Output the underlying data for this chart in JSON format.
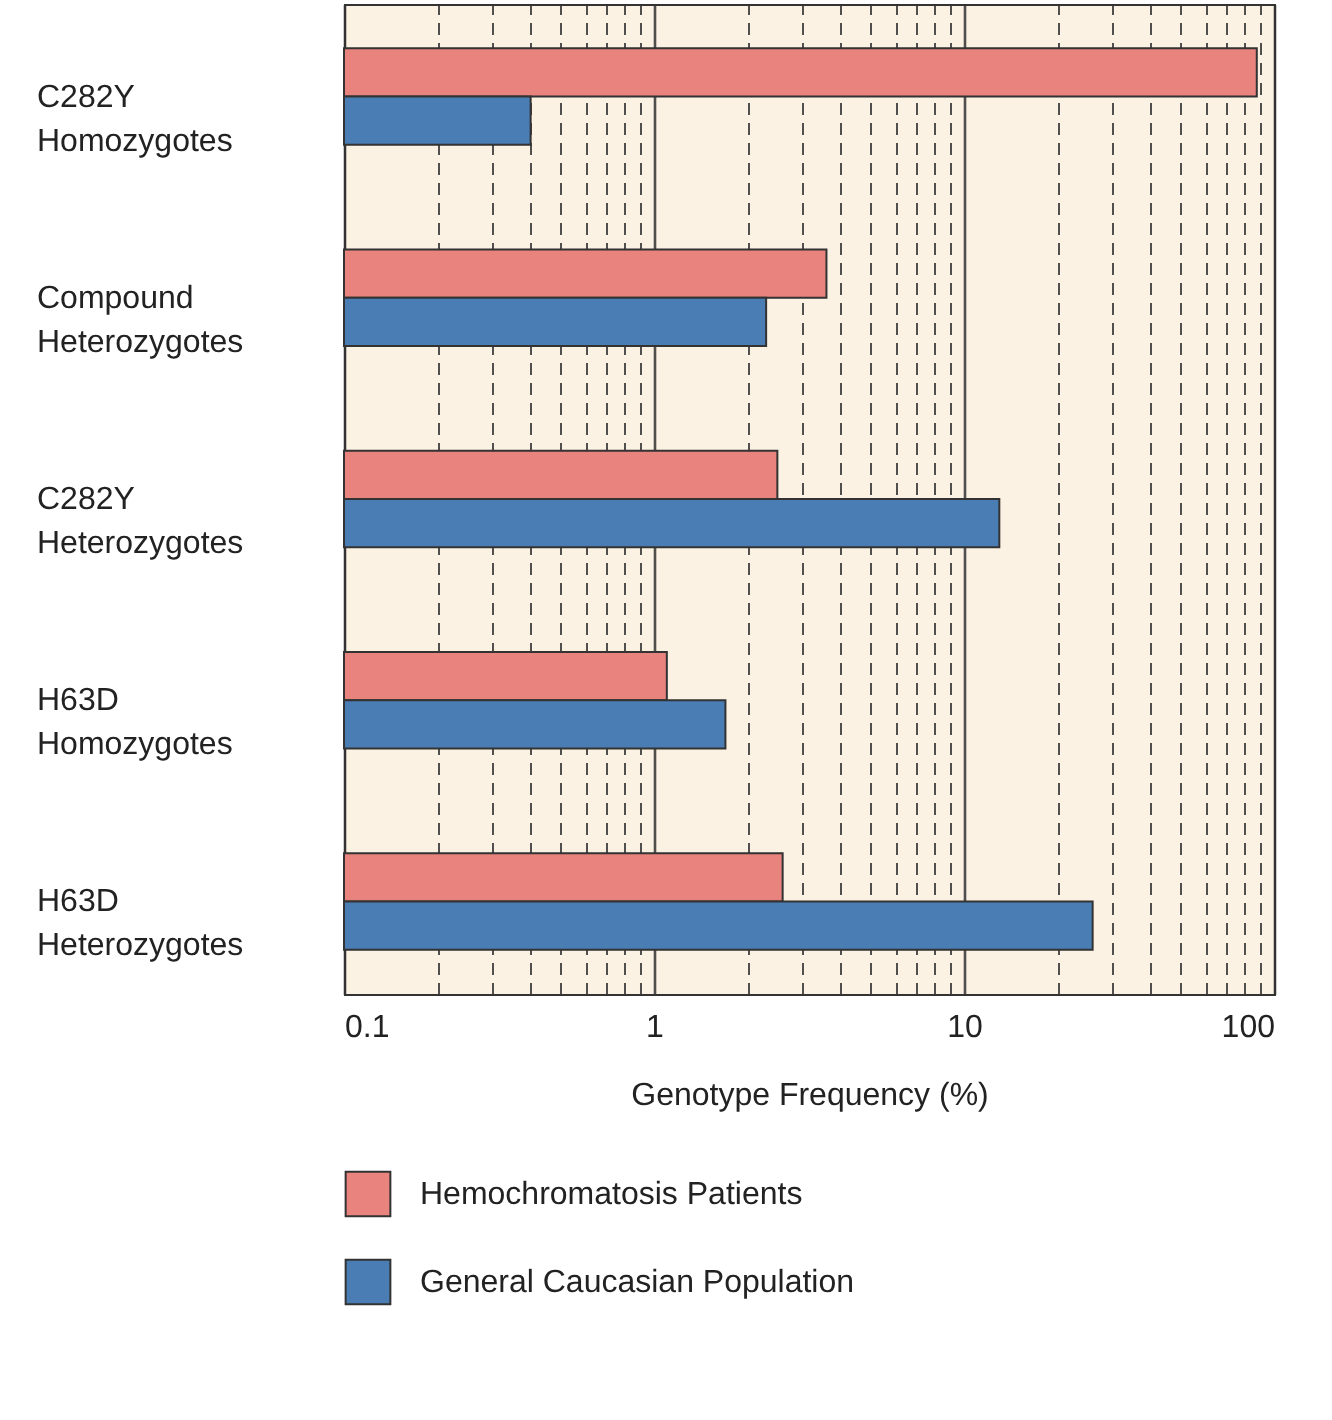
{
  "chart_data": {
    "type": "bar",
    "orientation": "horizontal",
    "xlabel": "Genotype Frequency (%)",
    "categories": [
      "C282Y Homozygotes",
      "Compound Heterozygotes",
      "C282Y Heterozygotes",
      "H63D Homozygotes",
      "H63D Heterozygotes"
    ],
    "series": [
      {
        "name": "Hemochromatosis Patients",
        "color": "#e8837d",
        "values": [
          88,
          3.6,
          2.5,
          1.1,
          2.6
        ]
      },
      {
        "name": "General Caucasian Population",
        "color": "#4a7db4",
        "values": [
          0.4,
          2.3,
          13,
          1.7,
          26
        ]
      }
    ],
    "log": "x",
    "xlim": [
      0.1,
      100
    ],
    "xticks": [
      0.1,
      {
        "value": 0.2,
        "label": null
      },
      {
        "value": 0.3,
        "label": null
      },
      {
        "value": 0.4,
        "label": null
      },
      {
        "value": 0.5,
        "label": null
      },
      {
        "value": 0.6,
        "label": null
      },
      {
        "value": 0.7,
        "label": null
      },
      {
        "value": 0.8,
        "label": null
      },
      {
        "value": 0.9,
        "label": null
      },
      1,
      {
        "value": 2,
        "label": null
      },
      {
        "value": 3,
        "label": null
      },
      {
        "value": 4,
        "label": null
      },
      {
        "value": 5,
        "label": null
      },
      {
        "value": 6,
        "label": null
      },
      {
        "value": 7,
        "label": null
      },
      {
        "value": 8,
        "label": null
      },
      {
        "value": 9,
        "label": null
      },
      10,
      {
        "value": 20,
        "label": null
      },
      {
        "value": 30,
        "label": null
      },
      {
        "value": 40,
        "label": null
      },
      {
        "value": 50,
        "label": null
      },
      {
        "value": 60,
        "label": null
      },
      {
        "value": 70,
        "label": null
      },
      {
        "value": 80,
        "label": null
      },
      {
        "value": 90,
        "label": null
      },
      100
    ],
    "grid": "x",
    "legend": "bottom"
  }
}
